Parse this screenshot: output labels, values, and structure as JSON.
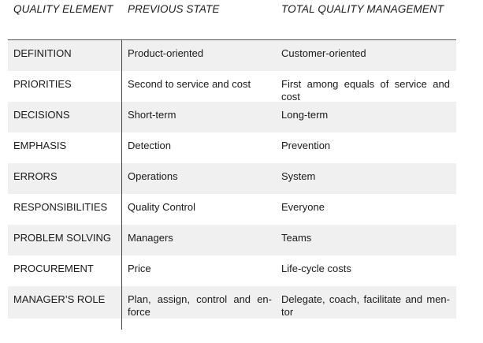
{
  "table": {
    "headers": [
      "QUALITY ELEMENT",
      "PREVIOUS STATE",
      "TOTAL QUALITY MANAGEMENT"
    ],
    "rows": [
      {
        "element": "DEFINITION",
        "previous": "Product-oriented",
        "tqm": "Customer-oriented"
      },
      {
        "element": "PRIORITIES",
        "previous": "Second to service and cost",
        "tqm": "First among equals of service and cost"
      },
      {
        "element": "DECISIONS",
        "previous": "Short-term",
        "tqm": "Long-term"
      },
      {
        "element": "EMPHASIS",
        "previous": "Detection",
        "tqm": "Prevention"
      },
      {
        "element": "ERRORS",
        "previous": "Operations",
        "tqm": "System"
      },
      {
        "element": "RESPONSIBILITIES",
        "previous": "Quality Control",
        "tqm": "Everyone"
      },
      {
        "element": "PROBLEM SOLVING",
        "previous": "Managers",
        "tqm": "Teams"
      },
      {
        "element": "PROCUREMENT",
        "previous": "Price",
        "tqm": "Life-cycle costs"
      },
      {
        "element": "MANAGER’S ROLE",
        "previous": "Plan, assign, control and en-force",
        "tqm": "Delegate, coach, facilitate and men-tor"
      }
    ]
  },
  "chart_data": {
    "type": "table",
    "columns": [
      "QUALITY ELEMENT",
      "PREVIOUS STATE",
      "TOTAL QUALITY MANAGEMENT"
    ],
    "rows": [
      [
        "DEFINITION",
        "Product-oriented",
        "Customer-oriented"
      ],
      [
        "PRIORITIES",
        "Second to service and cost",
        "First among equals of service and cost"
      ],
      [
        "DECISIONS",
        "Short-term",
        "Long-term"
      ],
      [
        "EMPHASIS",
        "Detection",
        "Prevention"
      ],
      [
        "ERRORS",
        "Operations",
        "System"
      ],
      [
        "RESPONSIBILITIES",
        "Quality Control",
        "Everyone"
      ],
      [
        "PROBLEM SOLVING",
        "Managers",
        "Teams"
      ],
      [
        "PROCUREMENT",
        "Price",
        "Life-cycle costs"
      ],
      [
        "MANAGER’S ROLE",
        "Plan, assign, control and en-force",
        "Delegate, coach, facilitate and men-tor"
      ]
    ]
  }
}
